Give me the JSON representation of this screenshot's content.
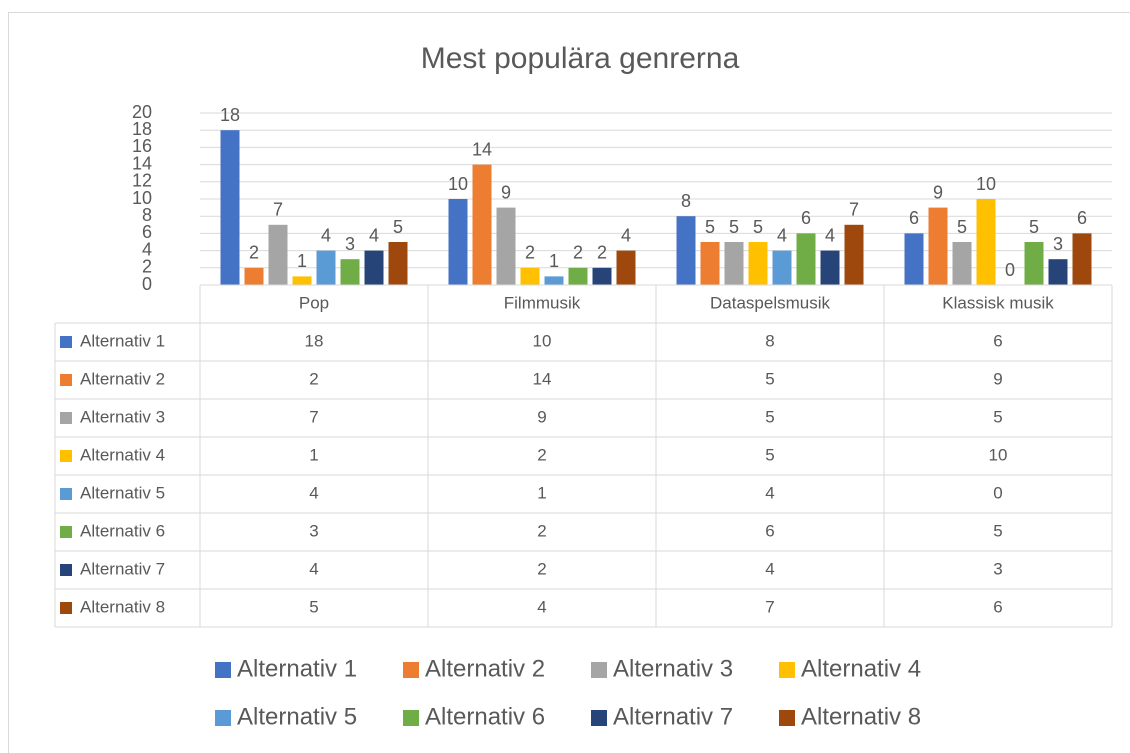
{
  "chart_data": {
    "type": "bar",
    "title": "Mest populära genrerna",
    "categories": [
      "Pop",
      "Filmmusik",
      "Dataspelsmusik",
      "Klassisk musik"
    ],
    "series": [
      {
        "name": "Alternativ 1",
        "color": "#4472c4",
        "values": [
          18,
          10,
          8,
          6
        ]
      },
      {
        "name": "Alternativ 2",
        "color": "#ed7d31",
        "values": [
          2,
          14,
          5,
          9
        ]
      },
      {
        "name": "Alternativ 3",
        "color": "#a5a5a5",
        "values": [
          7,
          9,
          5,
          5
        ]
      },
      {
        "name": "Alternativ 4",
        "color": "#ffc000",
        "values": [
          1,
          2,
          5,
          10
        ]
      },
      {
        "name": "Alternativ 5",
        "color": "#5b9bd5",
        "values": [
          4,
          1,
          4,
          0
        ]
      },
      {
        "name": "Alternativ 6",
        "color": "#70ad47",
        "values": [
          3,
          2,
          6,
          5
        ]
      },
      {
        "name": "Alternativ 7",
        "color": "#264478",
        "values": [
          4,
          2,
          4,
          3
        ]
      },
      {
        "name": "Alternativ 8",
        "color": "#9e480e",
        "values": [
          5,
          4,
          7,
          6
        ]
      }
    ],
    "ylim": [
      0,
      20
    ],
    "yticks": [
      0,
      2,
      4,
      6,
      8,
      10,
      12,
      14,
      16,
      18,
      20
    ],
    "grid": true,
    "legend": "bottom"
  }
}
